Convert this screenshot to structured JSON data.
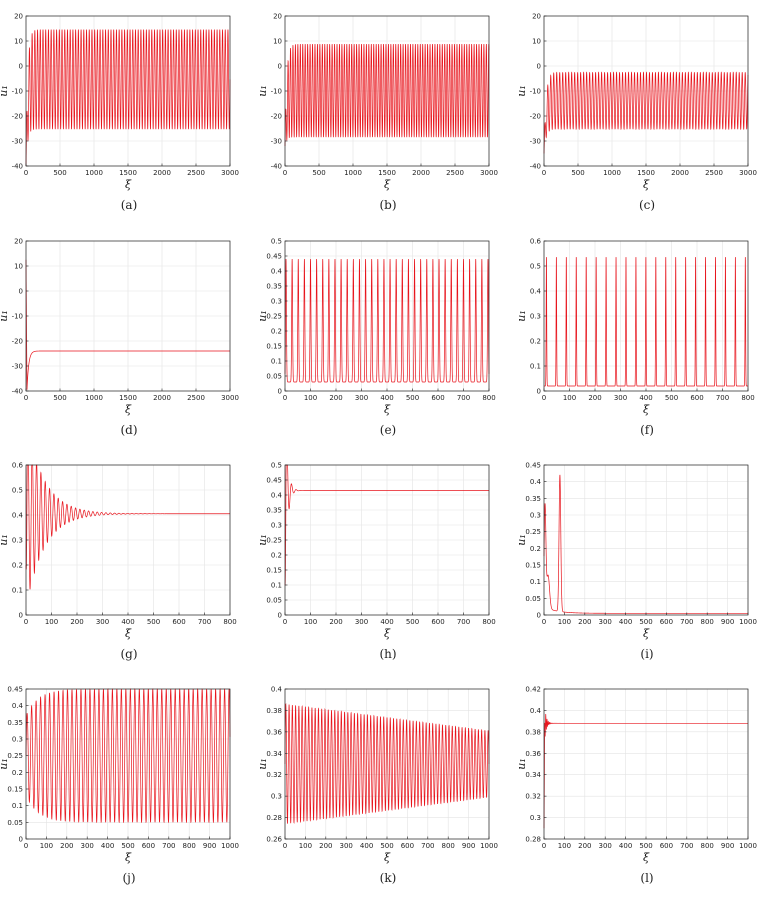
{
  "chart_data": [
    {
      "id": "a",
      "caption": "(a)",
      "type": "line",
      "xlabel": "ξ",
      "ylabel": "u₁",
      "xlim": [
        0,
        3000
      ],
      "ylim": [
        -40,
        20
      ],
      "xticks": [
        0,
        500,
        1000,
        1500,
        2000,
        2500,
        3000
      ],
      "yticks": [
        -40,
        -30,
        -20,
        -10,
        0,
        10,
        20
      ],
      "grid": true,
      "series": [
        {
          "color": "#e8141c",
          "values": {
            "x": [
              0,
              3000
            ],
            "profile": "osc",
            "start": -40,
            "max": 14.6,
            "min": -25.3,
            "period": 40,
            "damp": 0,
            "transient": 25
          }
        }
      ]
    },
    {
      "id": "b",
      "caption": "(b)",
      "type": "line",
      "xlabel": "ξ",
      "ylabel": "u₁",
      "xlim": [
        0,
        3000
      ],
      "ylim": [
        -40,
        20
      ],
      "xticks": [
        0,
        500,
        1000,
        1500,
        2000,
        2500,
        3000
      ],
      "yticks": [
        -40,
        -30,
        -20,
        -10,
        0,
        10,
        20
      ],
      "grid": true,
      "series": [
        {
          "color": "#e8141c",
          "values": {
            "x": [
              0,
              3000
            ],
            "profile": "osc",
            "start": -32,
            "max": 8.8,
            "min": -28.5,
            "period": 36,
            "damp": 0,
            "transient": 25
          }
        }
      ]
    },
    {
      "id": "c",
      "caption": "(c)",
      "type": "line",
      "xlabel": "ξ",
      "ylabel": "u₁",
      "xlim": [
        0,
        3000
      ],
      "ylim": [
        -40,
        20
      ],
      "xticks": [
        0,
        500,
        1000,
        1500,
        2000,
        2500,
        3000
      ],
      "yticks": [
        -40,
        -30,
        -20,
        -10,
        0,
        10,
        20
      ],
      "grid": true,
      "series": [
        {
          "color": "#e8141c",
          "values": {
            "x": [
              0,
              3000
            ],
            "profile": "osc",
            "start": -35,
            "max": -2.5,
            "min": -25.3,
            "period": 44,
            "damp": 0,
            "transient": 30
          }
        }
      ]
    },
    {
      "id": "d",
      "caption": "(d)",
      "type": "line",
      "xlabel": "ξ",
      "ylabel": "u₁",
      "xlim": [
        0,
        3000
      ],
      "ylim": [
        -40,
        20
      ],
      "xticks": [
        0,
        500,
        1000,
        1500,
        2000,
        2500,
        3000
      ],
      "yticks": [
        -40,
        -30,
        -20,
        -10,
        0,
        10,
        20
      ],
      "grid": true,
      "series": [
        {
          "color": "#e8141c",
          "values": {
            "x": [
              0,
              3000
            ],
            "profile": "decay",
            "start": 12.5,
            "dip": -39.5,
            "final": -24,
            "tau": 25,
            "dipAt": 15
          }
        }
      ]
    },
    {
      "id": "e",
      "caption": "(e)",
      "type": "line",
      "xlabel": "ξ",
      "ylabel": "u₁",
      "xlim": [
        0,
        800
      ],
      "ylim": [
        0,
        0.5
      ],
      "xticks": [
        0,
        100,
        200,
        300,
        400,
        500,
        600,
        700,
        800
      ],
      "yticks": [
        0,
        0.05,
        0.1,
        0.15,
        0.2,
        0.25,
        0.3,
        0.35,
        0.4,
        0.45,
        0.5
      ],
      "grid": true,
      "series": [
        {
          "color": "#e8141c",
          "values": {
            "x": [
              0,
              800
            ],
            "profile": "spike",
            "max": 0.44,
            "min": 0.03,
            "period": 24,
            "width": 0.3,
            "offset": 8
          }
        }
      ]
    },
    {
      "id": "f",
      "caption": "(f)",
      "type": "line",
      "xlabel": "ξ",
      "ylabel": "u₁",
      "xlim": [
        0,
        800
      ],
      "ylim": [
        0,
        0.6
      ],
      "xticks": [
        0,
        100,
        200,
        300,
        400,
        500,
        600,
        700,
        800
      ],
      "yticks": [
        0,
        0.1,
        0.2,
        0.3,
        0.4,
        0.5,
        0.6
      ],
      "grid": true,
      "series": [
        {
          "color": "#e8141c",
          "values": {
            "x": [
              0,
              800
            ],
            "profile": "spike",
            "max": 0.54,
            "min": 0.02,
            "period": 39,
            "width": 0.12,
            "offset": 10
          }
        }
      ]
    },
    {
      "id": "g",
      "caption": "(g)",
      "type": "line",
      "xlabel": "ξ",
      "ylabel": "u₁",
      "xlim": [
        0,
        800
      ],
      "ylim": [
        0,
        0.6
      ],
      "xticks": [
        0,
        100,
        200,
        300,
        400,
        500,
        600,
        700,
        800
      ],
      "yticks": [
        0,
        0.1,
        0.2,
        0.3,
        0.4,
        0.5,
        0.6
      ],
      "grid": true,
      "series": [
        {
          "color": "#e8141c",
          "values": {
            "x": [
              0,
              800
            ],
            "profile": "damped",
            "center": 0.405,
            "amp": 0.38,
            "period": 17,
            "tau": 70,
            "start": 0.2
          }
        }
      ]
    },
    {
      "id": "h",
      "caption": "(h)",
      "type": "line",
      "xlabel": "ξ",
      "ylabel": "u₁",
      "xlim": [
        0,
        800
      ],
      "ylim": [
        0,
        0.5
      ],
      "xticks": [
        0,
        100,
        200,
        300,
        400,
        500,
        600,
        700,
        800
      ],
      "yticks": [
        0,
        0.05,
        0.1,
        0.15,
        0.2,
        0.25,
        0.3,
        0.35,
        0.4,
        0.45,
        0.5
      ],
      "grid": true,
      "series": [
        {
          "color": "#e8141c",
          "values": {
            "x": [
              0,
              800
            ],
            "profile": "damped",
            "center": 0.415,
            "amp": 0.38,
            "period": 18,
            "tau": 9,
            "start": 0.1
          }
        }
      ]
    },
    {
      "id": "i",
      "caption": "(i)",
      "type": "line",
      "xlabel": "ξ",
      "ylabel": "u₁",
      "xlim": [
        0,
        1000
      ],
      "ylim": [
        0,
        0.45
      ],
      "xticks": [
        0,
        100,
        200,
        300,
        400,
        500,
        600,
        700,
        800,
        900,
        1000
      ],
      "yticks": [
        0,
        0.05,
        0.1,
        0.15,
        0.2,
        0.25,
        0.3,
        0.35,
        0.4,
        0.45
      ],
      "grid": true,
      "series": [
        {
          "color": "#e8141c",
          "values": {
            "x": [
              0,
              1000
            ],
            "profile": "twospike",
            "final": 0.005
          }
        }
      ]
    },
    {
      "id": "j",
      "caption": "(j)",
      "type": "line",
      "xlabel": "ξ",
      "ylabel": "u₁",
      "xlim": [
        0,
        1000
      ],
      "ylim": [
        0,
        0.45
      ],
      "xticks": [
        0,
        100,
        200,
        300,
        400,
        500,
        600,
        700,
        800,
        900,
        1000
      ],
      "yticks": [
        0,
        0.05,
        0.1,
        0.15,
        0.2,
        0.25,
        0.3,
        0.35,
        0.4,
        0.45
      ],
      "grid": true,
      "series": [
        {
          "color": "#e8141c",
          "values": {
            "x": [
              0,
              1000
            ],
            "profile": "growing",
            "center": 0.25,
            "amp0": 0.12,
            "ampMax": 0.2,
            "period": 22,
            "tau": 60
          }
        }
      ]
    },
    {
      "id": "k",
      "caption": "(k)",
      "type": "line",
      "xlabel": "ξ",
      "ylabel": "u₁",
      "xlim": [
        0,
        1000
      ],
      "ylim": [
        0.26,
        0.4
      ],
      "xticks": [
        0,
        100,
        200,
        300,
        400,
        500,
        600,
        700,
        800,
        900,
        1000
      ],
      "yticks": [
        0.26,
        0.28,
        0.3,
        0.32,
        0.34,
        0.36,
        0.38,
        0.4
      ],
      "grid": true,
      "series": [
        {
          "color": "#e8141c",
          "values": {
            "x": [
              0,
              1000
            ],
            "profile": "envelope",
            "center": 0.33,
            "amp0": 0.056,
            "amp1": 0.031,
            "period": 16
          }
        }
      ]
    },
    {
      "id": "l",
      "caption": "(l)",
      "type": "line",
      "xlabel": "ξ",
      "ylabel": "u₁",
      "xlim": [
        0,
        1000
      ],
      "ylim": [
        0.28,
        0.42
      ],
      "xticks": [
        0,
        100,
        200,
        300,
        400,
        500,
        600,
        700,
        800,
        900,
        1000
      ],
      "yticks": [
        0.28,
        0.3,
        0.32,
        0.34,
        0.36,
        0.38,
        0.4,
        0.42
      ],
      "grid": true,
      "series": [
        {
          "color": "#e8141c",
          "values": {
            "x": [
              0,
              1000
            ],
            "profile": "damped",
            "center": 0.388,
            "amp": 0.025,
            "period": 6,
            "tau": 8,
            "start": 0.29
          }
        }
      ]
    }
  ]
}
